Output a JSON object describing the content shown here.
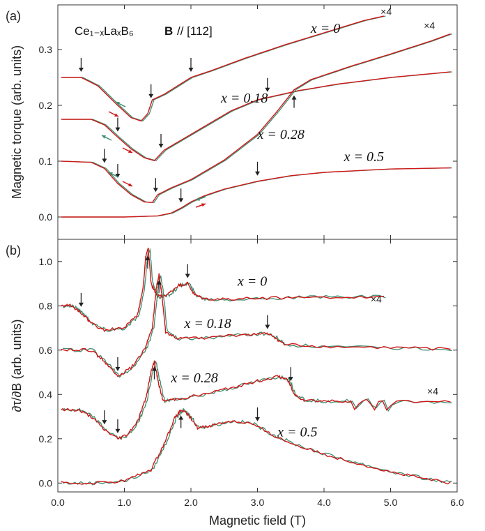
{
  "chart_data": [
    {
      "type": "line",
      "panel_label": "(a)",
      "formula_text": "Ce₁₋ₓLaₓB₆",
      "formula_bold": "B",
      "formula_direction": "// [112]",
      "ylabel": "Magnetic torque (arb. units)",
      "xlim": [
        0.0,
        6.0
      ],
      "ylim": [
        -0.04,
        0.38
      ],
      "yticks": [
        "0.0",
        "0.1",
        "0.2",
        "0.3"
      ],
      "multiplier_labels": [
        "×4",
        "×4"
      ],
      "colors": {
        "up": "#d01818",
        "down": "#3d8c6e"
      },
      "series": [
        {
          "name": "x = 0",
          "label_x": 3.8,
          "label_y": 0.33,
          "x": [
            0.05,
            0.35,
            0.6,
            0.9,
            1.1,
            1.25,
            1.35,
            1.42,
            1.6,
            1.8,
            2.0,
            2.3,
            2.8,
            3.4,
            4.0,
            4.6,
            4.9
          ],
          "y": [
            0.25,
            0.25,
            0.235,
            0.2,
            0.178,
            0.172,
            0.185,
            0.21,
            0.22,
            0.235,
            0.25,
            0.262,
            0.284,
            0.308,
            0.33,
            0.352,
            0.36
          ],
          "arrows_down": [
            0.35,
            1.4,
            2.0
          ]
        },
        {
          "name": "x = 0.18",
          "label_x": 2.45,
          "label_y": 0.205,
          "x": [
            0.05,
            0.5,
            0.7,
            0.9,
            1.1,
            1.3,
            1.45,
            1.52,
            1.6,
            1.8,
            2.2,
            2.6,
            3.0,
            3.3,
            3.6,
            4.2,
            5.0,
            5.9
          ],
          "y": [
            0.175,
            0.175,
            0.165,
            0.143,
            0.122,
            0.106,
            0.101,
            0.11,
            0.12,
            0.134,
            0.162,
            0.19,
            0.21,
            0.218,
            0.226,
            0.238,
            0.25,
            0.26
          ],
          "arrows_down": [
            0.9,
            1.55,
            3.15
          ]
        },
        {
          "name": "x = 0.28",
          "label_x": 3.0,
          "label_y": 0.14,
          "x": [
            0.05,
            0.5,
            0.7,
            0.9,
            1.1,
            1.3,
            1.42,
            1.5,
            1.7,
            2.0,
            2.5,
            3.0,
            3.3,
            3.55,
            3.8,
            4.4,
            5.0,
            5.6,
            5.9
          ],
          "y": [
            0.1,
            0.098,
            0.087,
            0.06,
            0.04,
            0.027,
            0.026,
            0.04,
            0.052,
            0.067,
            0.102,
            0.148,
            0.19,
            0.228,
            0.246,
            0.27,
            0.292,
            0.315,
            0.328
          ],
          "arrows_down": [
            0.7,
            0.9,
            1.47
          ],
          "arrows_up": [
            3.55
          ]
        },
        {
          "name": "x = 0.5",
          "label_x": 4.3,
          "label_y": 0.1,
          "x": [
            0.05,
            1.0,
            1.5,
            1.7,
            1.85,
            2.0,
            2.2,
            2.5,
            3.0,
            3.5,
            4.0,
            5.0,
            5.9
          ],
          "y": [
            0.0,
            0.0,
            0.002,
            0.007,
            0.016,
            0.027,
            0.038,
            0.05,
            0.064,
            0.074,
            0.08,
            0.086,
            0.088
          ],
          "arrows_down": [
            1.85,
            3.0
          ]
        }
      ]
    },
    {
      "type": "line",
      "panel_label": "(b)",
      "ylabel": "∂τ/∂B (arb. units)",
      "xlabel": "Magnetic field (T)",
      "xlim": [
        0.0,
        6.0
      ],
      "ylim": [
        -0.04,
        1.1
      ],
      "xticks": [
        "0.0",
        "1.0",
        "2.0",
        "3.0",
        "4.0",
        "5.0",
        "6.0"
      ],
      "yticks": [
        "0.0",
        "0.2",
        "0.4",
        "0.6",
        "0.8",
        "1.0"
      ],
      "multiplier_labels": [
        "×4",
        "×4"
      ],
      "series": [
        {
          "name": "x = 0",
          "label_x": 2.7,
          "label_y": 0.89,
          "x": [
            0.05,
            0.2,
            0.35,
            0.5,
            0.7,
            1.0,
            1.2,
            1.28,
            1.32,
            1.36,
            1.4,
            1.5,
            1.65,
            1.8,
            1.95,
            2.05,
            2.2,
            2.6,
            3.2,
            4.0,
            4.9
          ],
          "y": [
            0.8,
            0.8,
            0.77,
            0.72,
            0.69,
            0.7,
            0.76,
            0.88,
            1.02,
            1.06,
            0.9,
            0.84,
            0.85,
            0.89,
            0.9,
            0.85,
            0.83,
            0.83,
            0.835,
            0.84,
            0.84
          ],
          "arrows_down": [
            0.35,
            1.95
          ],
          "arrows_up": [
            1.35
          ]
        },
        {
          "name": "x = 0.18",
          "label_x": 1.9,
          "label_y": 0.7,
          "x": [
            0.05,
            0.5,
            0.7,
            0.9,
            1.1,
            1.3,
            1.42,
            1.48,
            1.52,
            1.56,
            1.62,
            1.8,
            2.2,
            2.8,
            3.1,
            3.25,
            3.4,
            4.0,
            5.0,
            5.9
          ],
          "y": [
            0.6,
            0.6,
            0.55,
            0.48,
            0.52,
            0.6,
            0.7,
            0.88,
            0.94,
            0.86,
            0.68,
            0.65,
            0.655,
            0.67,
            0.675,
            0.66,
            0.625,
            0.615,
            0.61,
            0.605
          ],
          "arrows_down": [
            0.9,
            3.15
          ],
          "arrows_up": [
            1.52
          ]
        },
        {
          "name": "x = 0.28",
          "label_x": 1.7,
          "label_y": 0.455,
          "x": [
            0.05,
            0.3,
            0.5,
            0.7,
            0.9,
            1.05,
            1.2,
            1.32,
            1.4,
            1.45,
            1.5,
            1.58,
            1.8,
            2.2,
            2.6,
            3.0,
            3.3,
            3.45,
            3.55,
            3.7,
            4.0,
            4.4,
            5.0,
            5.9
          ],
          "y": [
            0.33,
            0.33,
            0.3,
            0.24,
            0.2,
            0.22,
            0.28,
            0.38,
            0.5,
            0.55,
            0.47,
            0.37,
            0.38,
            0.4,
            0.43,
            0.46,
            0.48,
            0.47,
            0.4,
            0.375,
            0.37,
            0.37,
            0.37,
            0.365
          ],
          "arrows_down": [
            0.7,
            0.9,
            3.5
          ],
          "arrows_up": [
            1.45
          ],
          "oscillations": [
            4.5,
            4.72,
            4.98
          ]
        },
        {
          "name": "x = 0.5",
          "label_x": 3.3,
          "label_y": 0.21,
          "x": [
            0.05,
            0.5,
            1.0,
            1.4,
            1.6,
            1.75,
            1.85,
            1.95,
            2.1,
            2.3,
            2.6,
            2.9,
            3.2,
            3.5,
            4.0,
            4.5,
            5.0,
            5.5,
            5.9
          ],
          "y": [
            0.0,
            0.0,
            0.01,
            0.06,
            0.18,
            0.29,
            0.33,
            0.31,
            0.25,
            0.26,
            0.28,
            0.27,
            0.22,
            0.18,
            0.13,
            0.09,
            0.05,
            0.02,
            0.0
          ],
          "arrows_down": [
            3.0
          ],
          "arrows_up": [
            1.85
          ]
        }
      ]
    }
  ]
}
